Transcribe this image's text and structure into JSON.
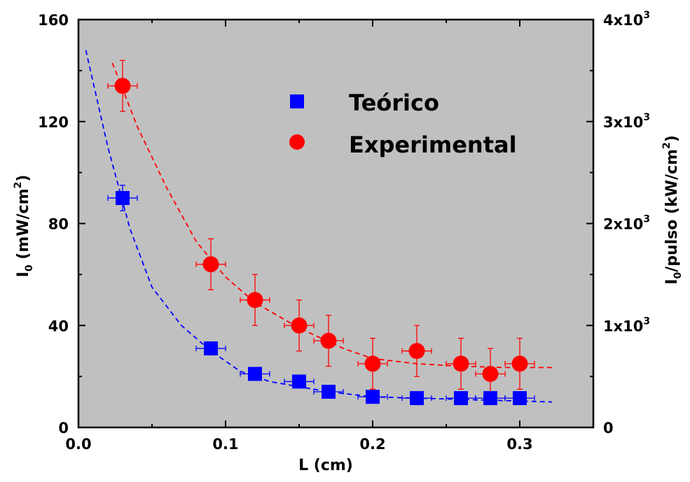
{
  "chart_data": {
    "type": "scatter",
    "xlabel": "L (cm)",
    "ylabel": {
      "base": "I",
      "sub": "0",
      "rest": " (mW/cm",
      "sup": "2",
      "end": ")"
    },
    "ylabel_right": {
      "base": "I",
      "sub": "0",
      "rest": "/pulso (kW/cm",
      "sup": "2",
      "end": ")"
    },
    "xlim": [
      0.0,
      0.35
    ],
    "ylim": [
      0,
      160
    ],
    "ylim_right": [
      0,
      4000
    ],
    "x_ticks": [
      "0.0",
      "0.1",
      "0.2",
      "0.3"
    ],
    "y_ticks": [
      "0",
      "40",
      "80",
      "120",
      "160"
    ],
    "y_right_ticks": [
      {
        "value": 0,
        "label": "0"
      },
      {
        "value": 1000,
        "label": "1x10",
        "exp": "3"
      },
      {
        "value": 2000,
        "label": "2x10",
        "exp": "3"
      },
      {
        "value": 3000,
        "label": "3x10",
        "exp": "3"
      },
      {
        "value": 4000,
        "label": "4x10",
        "exp": "3"
      }
    ],
    "legend_position": "top-center",
    "background": "#c0c0c0",
    "series": [
      {
        "name": "Teórico",
        "marker": "square",
        "color": "#0000ff",
        "x": [
          0.03,
          0.09,
          0.12,
          0.15,
          0.17,
          0.2,
          0.23,
          0.26,
          0.28,
          0.3
        ],
        "y": [
          90,
          31,
          21,
          18,
          14,
          12,
          11.5,
          11.5,
          11.5,
          11.5
        ],
        "y_err": [
          5,
          1.5,
          1.5,
          1.5,
          1.5,
          1.5,
          1,
          1,
          1,
          1
        ],
        "x_err": [
          0.01,
          0.01,
          0.01,
          0.01,
          0.01,
          0.01,
          0.01,
          0.01,
          0.01,
          0.01
        ],
        "fit": {
          "x": [
            0.005,
            0.02,
            0.035,
            0.05,
            0.07,
            0.09,
            0.11,
            0.13,
            0.15,
            0.17,
            0.2,
            0.23,
            0.26,
            0.29,
            0.322
          ],
          "y": [
            148,
            110,
            78,
            55,
            40,
            30,
            22,
            18,
            16,
            14,
            12,
            11.5,
            11,
            10.5,
            10
          ]
        }
      },
      {
        "name": "Experimental",
        "marker": "circle",
        "color": "#ff0000",
        "x": [
          0.03,
          0.09,
          0.12,
          0.15,
          0.17,
          0.2,
          0.23,
          0.26,
          0.28,
          0.3
        ],
        "y": [
          134,
          64,
          50,
          40,
          34,
          25,
          30,
          25,
          21,
          25
        ],
        "y_err": [
          10,
          10,
          10,
          10,
          10,
          10,
          10,
          10,
          10,
          10
        ],
        "x_err": [
          0.01,
          0.01,
          0.01,
          0.01,
          0.01,
          0.01,
          0.01,
          0.01,
          0.01,
          0.01
        ],
        "fit": {
          "x": [
            0.023,
            0.04,
            0.06,
            0.08,
            0.1,
            0.12,
            0.15,
            0.18,
            0.2,
            0.23,
            0.26,
            0.29,
            0.322
          ],
          "y": [
            143,
            118,
            94,
            73,
            59,
            49,
            39,
            31,
            27,
            25,
            24,
            23.5,
            23.5
          ]
        }
      }
    ]
  }
}
